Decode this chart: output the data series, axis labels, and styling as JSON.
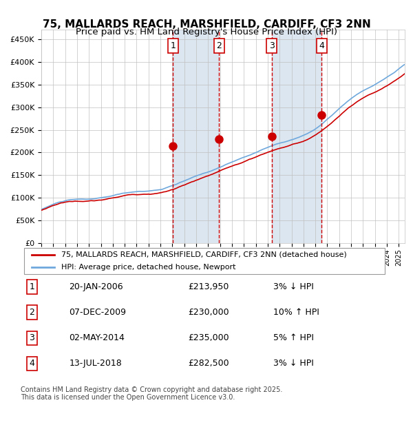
{
  "title": "75, MALLARDS REACH, MARSHFIELD, CARDIFF, CF3 2NN",
  "subtitle": "Price paid vs. HM Land Registry's House Price Index (HPI)",
  "legend_line1": "75, MALLARDS REACH, MARSHFIELD, CARDIFF, CF3 2NN (detached house)",
  "legend_line2": "HPI: Average price, detached house, Newport",
  "footer": "Contains HM Land Registry data © Crown copyright and database right 2025.\nThis data is licensed under the Open Government Licence v3.0.",
  "sales": [
    {
      "num": 1,
      "date": "20-JAN-2006",
      "price": "£213,950",
      "pct": "3%",
      "dir": "↓",
      "x_year": 2006.05
    },
    {
      "num": 2,
      "date": "07-DEC-2009",
      "price": "£230,000",
      "pct": "10%",
      "dir": "↑",
      "x_year": 2009.92
    },
    {
      "num": 3,
      "date": "02-MAY-2014",
      "price": "£235,000",
      "pct": "5%",
      "dir": "↑",
      "x_year": 2014.33
    },
    {
      "num": 4,
      "date": "13-JUL-2018",
      "price": "£282,500",
      "pct": "3%",
      "dir": "↓",
      "x_year": 2018.53
    }
  ],
  "ylim": [
    0,
    470000
  ],
  "xlim_start": 1995,
  "xlim_end": 2025.5,
  "hpi_color": "#6fa8dc",
  "price_color": "#cc0000",
  "sale_dot_color": "#cc0000",
  "vline_color": "#cc0000",
  "shade_color": "#dce6f1",
  "grid_color": "#c0c0c0",
  "background_color": "#ffffff",
  "title_fontsize": 11,
  "subtitle_fontsize": 9.5
}
